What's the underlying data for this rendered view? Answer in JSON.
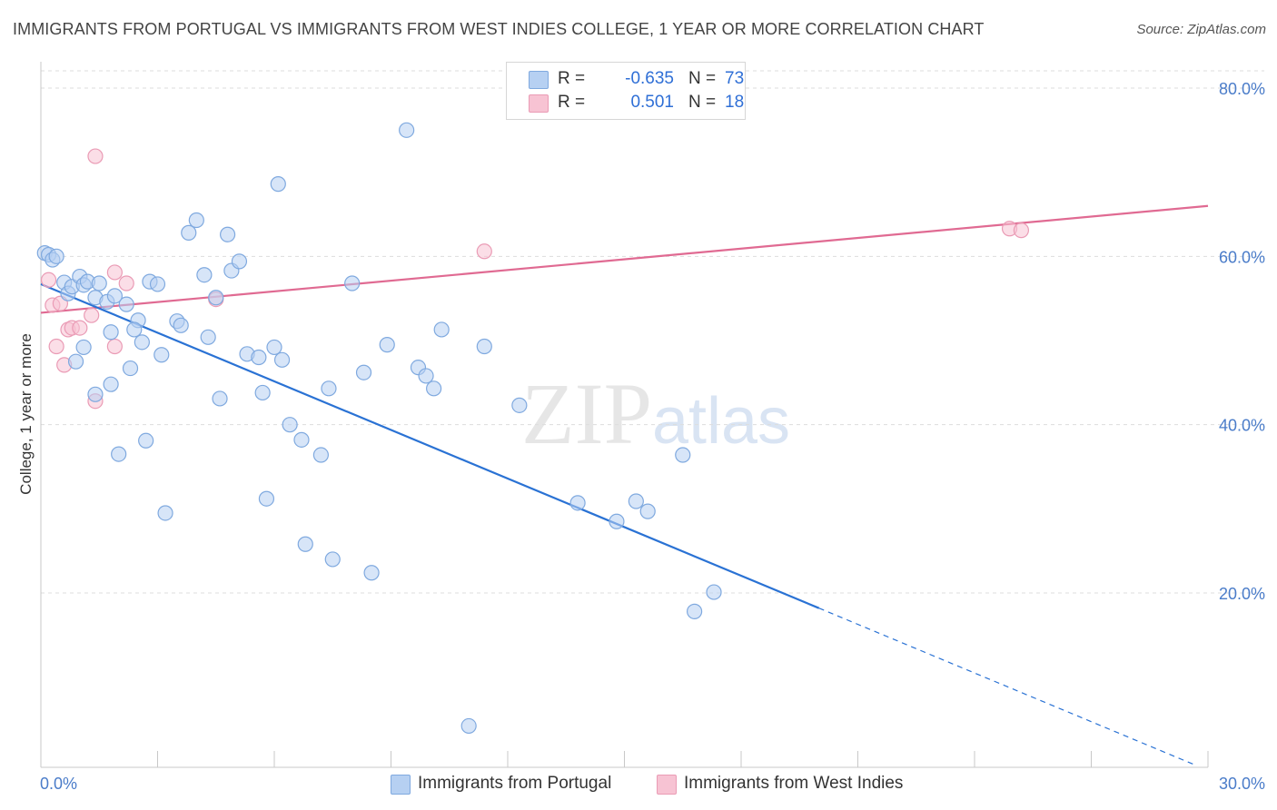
{
  "header": {
    "title": "IMMIGRANTS FROM PORTUGAL VS IMMIGRANTS FROM WEST INDIES COLLEGE, 1 YEAR OR MORE CORRELATION CHART",
    "source": "Source: ZipAtlas.com"
  },
  "watermark": "ZIPatlas",
  "legend": {
    "portugal": {
      "r_label": "R =",
      "r_value": "-0.635",
      "n_label": "N =",
      "n_value": "73"
    },
    "west_indies": {
      "r_label": "R =",
      "r_value": "0.501",
      "n_label": "N =",
      "n_value": "18"
    }
  },
  "bottom_legend": {
    "portugal": "Immigrants from Portugal",
    "west_indies": "Immigrants from West Indies"
  },
  "colors": {
    "portugal_fill": "#b6d0f2",
    "portugal_stroke": "#7fa9df",
    "portugal_line": "#2a72d4",
    "west_indies_fill": "#f7c3d3",
    "west_indies_stroke": "#ea9bb5",
    "west_indies_line": "#e06a92",
    "tick_text": "#4a7cc9",
    "grid": "#dddddd"
  },
  "chart_data": {
    "type": "scatter",
    "title": "IMMIGRANTS FROM PORTUGAL VS IMMIGRANTS FROM WEST INDIES COLLEGE, 1 YEAR OR MORE CORRELATION CHART",
    "xlabel": "",
    "ylabel": "College, 1 year or more",
    "xlim": [
      0,
      30
    ],
    "ylim": [
      0,
      82
    ],
    "x_tick_labels": [
      "0.0%",
      "30.0%"
    ],
    "y_ticks": [
      20,
      40,
      60,
      80
    ],
    "y_tick_labels": [
      "20.0%",
      "40.0%",
      "60.0%",
      "80.0%"
    ],
    "grid": "horizontal dashed",
    "legend_position": "top-center",
    "series": [
      {
        "name": "Immigrants from Portugal",
        "R": -0.635,
        "N": 73,
        "points": [
          [
            0.1,
            60.4
          ],
          [
            0.2,
            60.2
          ],
          [
            0.3,
            59.6
          ],
          [
            0.4,
            60.0
          ],
          [
            0.6,
            56.9
          ],
          [
            0.7,
            55.6
          ],
          [
            0.8,
            56.4
          ],
          [
            1.0,
            57.6
          ],
          [
            1.1,
            56.6
          ],
          [
            1.2,
            57.0
          ],
          [
            1.4,
            55.1
          ],
          [
            1.5,
            56.8
          ],
          [
            1.7,
            54.6
          ],
          [
            1.8,
            51.0
          ],
          [
            1.9,
            55.3
          ],
          [
            2.2,
            54.3
          ],
          [
            2.5,
            52.4
          ],
          [
            2.8,
            57.0
          ],
          [
            3.0,
            56.7
          ],
          [
            0.9,
            47.5
          ],
          [
            1.1,
            49.2
          ],
          [
            1.4,
            43.6
          ],
          [
            1.8,
            44.8
          ],
          [
            2.3,
            46.7
          ],
          [
            2.4,
            51.3
          ],
          [
            2.6,
            49.8
          ],
          [
            2.7,
            38.1
          ],
          [
            2.0,
            36.5
          ],
          [
            3.1,
            48.3
          ],
          [
            3.5,
            52.3
          ],
          [
            3.6,
            51.8
          ],
          [
            3.2,
            29.5
          ],
          [
            3.8,
            62.8
          ],
          [
            4.0,
            64.3
          ],
          [
            4.2,
            57.8
          ],
          [
            4.3,
            50.4
          ],
          [
            4.5,
            55.1
          ],
          [
            4.6,
            43.1
          ],
          [
            4.8,
            62.6
          ],
          [
            4.9,
            58.3
          ],
          [
            5.1,
            59.4
          ],
          [
            5.3,
            48.4
          ],
          [
            5.6,
            48.0
          ],
          [
            5.7,
            43.8
          ],
          [
            5.8,
            31.2
          ],
          [
            6.0,
            49.2
          ],
          [
            6.1,
            68.6
          ],
          [
            6.2,
            47.7
          ],
          [
            6.4,
            40.0
          ],
          [
            6.7,
            38.2
          ],
          [
            6.8,
            25.8
          ],
          [
            7.2,
            36.4
          ],
          [
            7.4,
            44.3
          ],
          [
            7.5,
            24.0
          ],
          [
            8.0,
            56.8
          ],
          [
            8.3,
            46.2
          ],
          [
            8.5,
            22.4
          ],
          [
            8.9,
            49.5
          ],
          [
            9.4,
            75.0
          ],
          [
            9.7,
            46.8
          ],
          [
            9.9,
            45.8
          ],
          [
            10.1,
            44.3
          ],
          [
            10.3,
            51.3
          ],
          [
            11.0,
            4.2
          ],
          [
            11.4,
            49.3
          ],
          [
            12.3,
            42.3
          ],
          [
            13.8,
            30.7
          ],
          [
            14.8,
            28.5
          ],
          [
            15.3,
            30.9
          ],
          [
            15.6,
            29.7
          ],
          [
            16.5,
            36.4
          ],
          [
            16.8,
            17.8
          ],
          [
            17.3,
            20.1
          ]
        ],
        "trend": {
          "x": [
            0,
            20
          ],
          "y": [
            56.7,
            18.2
          ],
          "dashed_extension": {
            "x": [
              20,
              29.7
            ],
            "y": [
              18.2,
              -0.5
            ]
          }
        }
      },
      {
        "name": "Immigrants from West Indies",
        "R": 0.501,
        "N": 18,
        "points": [
          [
            0.2,
            57.2
          ],
          [
            0.3,
            54.2
          ],
          [
            0.4,
            49.3
          ],
          [
            0.5,
            54.4
          ],
          [
            0.6,
            47.1
          ],
          [
            0.7,
            51.3
          ],
          [
            0.8,
            51.5
          ],
          [
            1.0,
            51.5
          ],
          [
            1.3,
            53.0
          ],
          [
            1.4,
            42.8
          ],
          [
            1.4,
            71.9
          ],
          [
            1.9,
            49.3
          ],
          [
            1.9,
            58.1
          ],
          [
            2.2,
            56.8
          ],
          [
            4.5,
            54.9
          ],
          [
            11.4,
            60.6
          ],
          [
            24.9,
            63.3
          ],
          [
            25.2,
            63.1
          ]
        ],
        "trend": {
          "x": [
            0,
            30
          ],
          "y": [
            53.3,
            66.0
          ]
        }
      }
    ]
  }
}
